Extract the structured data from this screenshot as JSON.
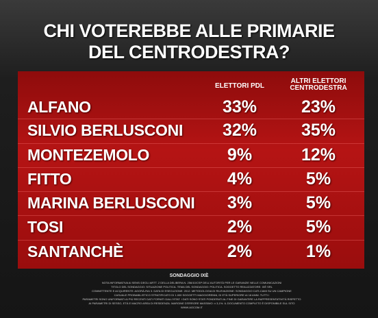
{
  "header": {
    "title_lines": [
      "CHI VOTEREBBE ALLE PRIMARIE",
      "DEL CENTRODESTRA?"
    ]
  },
  "table": {
    "columns": [
      "ELETTORI PDL",
      "ALTRI ELETTORI CENTRODESTRA"
    ],
    "rows": [
      [
        "ALFANO",
        "33%",
        "23%"
      ],
      [
        "SILVIO BERLUSCONI",
        "32%",
        "35%"
      ],
      [
        "MONTEZEMOLO",
        "9%",
        "12%"
      ],
      [
        "FITTO",
        "4%",
        "5%"
      ],
      [
        "MARINA BERLUSCONI",
        "3%",
        "5%"
      ],
      [
        "TOSI",
        "2%",
        "5%"
      ],
      [
        "SANTANCHÈ",
        "2%",
        "1%"
      ]
    ]
  },
  "footer": {
    "source": "SONDAGGIO IXÈ",
    "notes": [
      "NOTA INFORMATIVA AI SENSI DEGLI ARTT. 2 DELLA DELIBERA N. 256/10/CSP DELL'AUTORITÀ PER LE GARANZIE NELLE COMUNICAZIONI",
      "TITOLO DEL SONDAGGIO: SITUAZIONE POLITICA. TEMA DEL SONDAGGIO: POLITICA. SOGGETTO REALIZZATORE: IXÈ SRL",
      "COMMITTENTE E ACQUIRENTE: AGORÀ-RAI 3. DATA DI ESECUZIONE: 2012. METODOLOGIA DI RILEVAZIONE: SONDAGGIO CATI-CAMI SU UN CAMPIONE",
      "CASUALE PROBABILISTICO STRATIFICATO DI 1.000 SOGGETTI MAGGIORENNI, DI ETÀ SUPERIORE AI 18 ANNI. TUTTI I",
      "PARAMETRI SONO UNIFORMATI AI PIÙ RECENTI DATI FORNITI DALL'ISTAT. I DATI SONO STATI PONDERATI AL FINE DI GARANTIRE LA RAPPRESENTATIVITÀ RISPETTO",
      "AI PARAMETRI DI SESSO, ETÀ E MACRO AREA DI RESIDENZA. MARGINE D'ERRORE MASSIMO: ± 3,1%. IL DOCUMENTO COMPLETO È DISPONIBILE SUL SITO",
      "WWW.AGCOM.IT"
    ]
  }
}
